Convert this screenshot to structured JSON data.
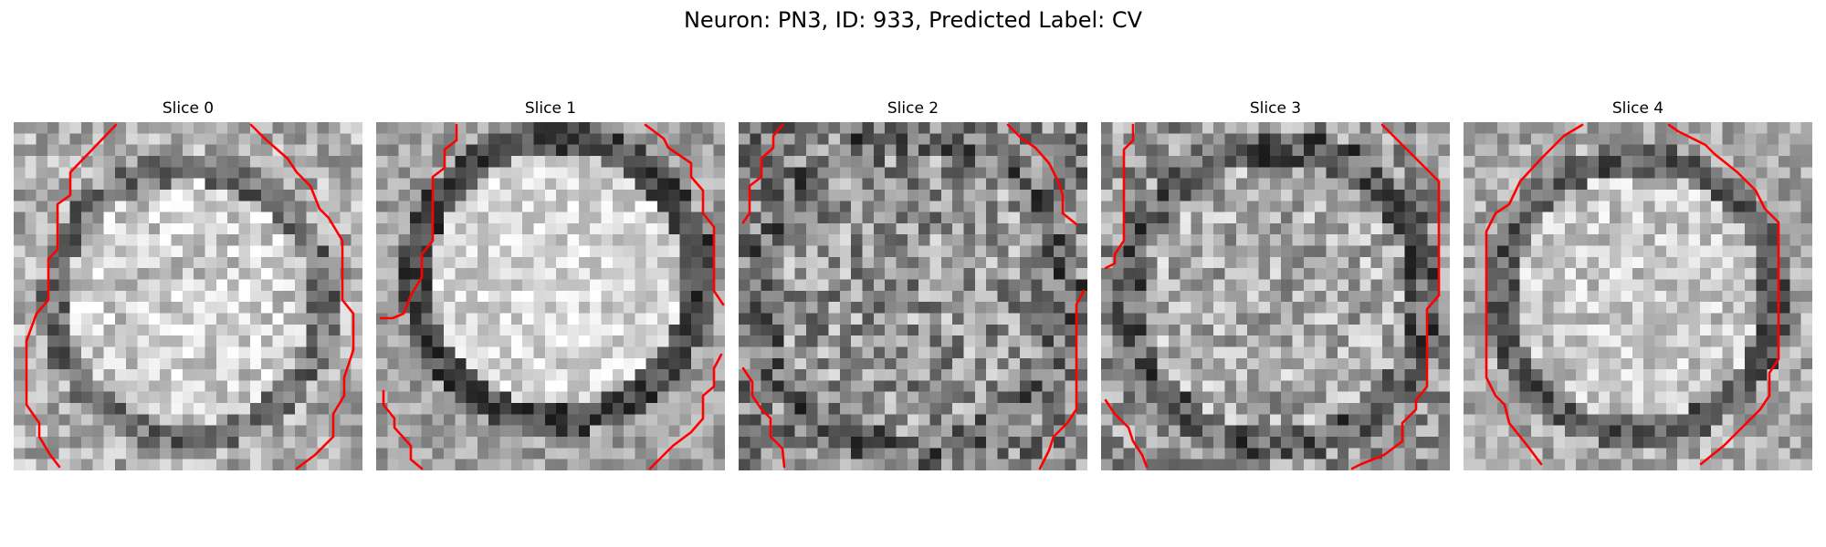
{
  "figure": {
    "title": "Neuron: PN3, ID: 933, Predicted Label: CV"
  },
  "contour_color": "#ff0000",
  "slices": [
    {
      "label": "Slice 0"
    },
    {
      "label": "Slice 1"
    },
    {
      "label": "Slice 2"
    },
    {
      "label": "Slice 3"
    },
    {
      "label": "Slice 4"
    }
  ]
}
